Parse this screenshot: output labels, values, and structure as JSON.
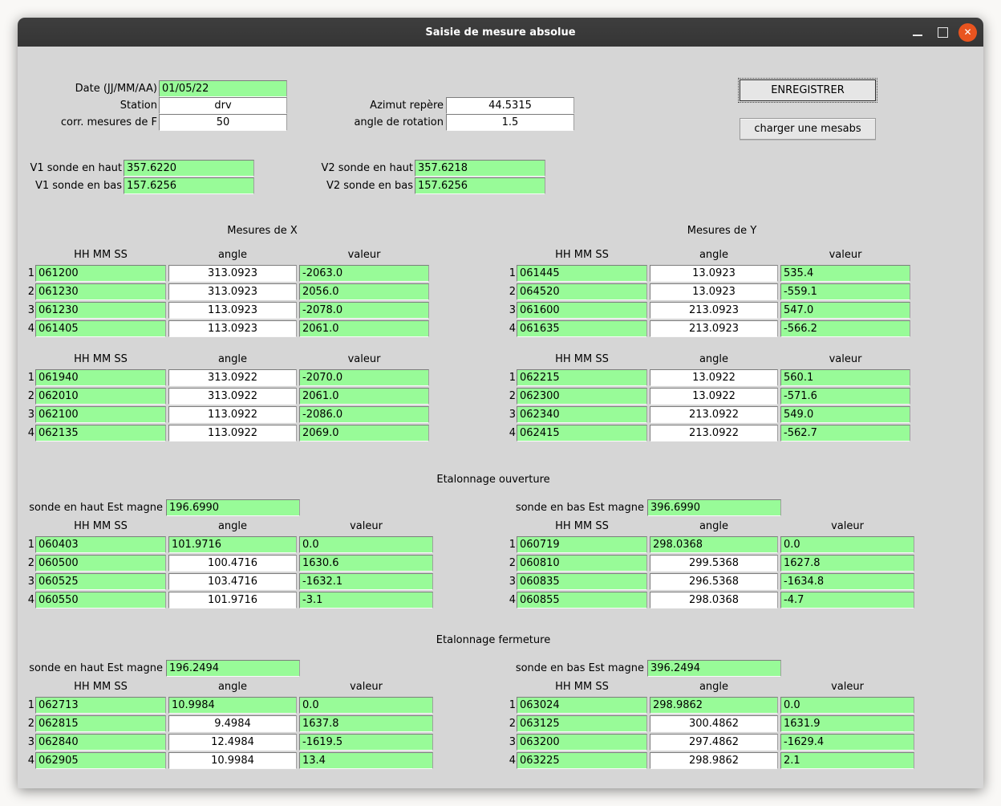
{
  "window": {
    "title": "Saisie de mesure absolue",
    "close_glyph": "✕"
  },
  "colors": {
    "field_green": "#98fb98",
    "field_white": "#ffffff",
    "window_bg": "#d6d6d6",
    "titlebar_bg": "#383838",
    "close_button": "#e9541f"
  },
  "header_form": {
    "date_label": "Date (JJ/MM/AA)",
    "date_value": "01/05/22",
    "station_label": "Station",
    "station_value": "drv",
    "corr_label": "corr. mesures de F",
    "corr_value": "50",
    "azimut_label": "Azimut repère",
    "azimut_value": "44.5315",
    "rotation_label": "angle de rotation",
    "rotation_value": "1.5",
    "save_button": "ENREGISTRER",
    "load_button": "charger une mesabs"
  },
  "sondes": {
    "v1_haut_label": "V1 sonde en haut",
    "v1_haut_value": "357.6220",
    "v1_bas_label": "V1 sonde en bas",
    "v1_bas_value": "157.6256",
    "v2_haut_label": "V2 sonde en haut",
    "v2_haut_value": "357.6218",
    "v2_bas_label": "V2 sonde en bas",
    "v2_bas_value": "157.6256"
  },
  "columns": {
    "time": "HH MM SS",
    "angle": "angle",
    "value": "valeur"
  },
  "mesures_x": {
    "title": "Mesures de X",
    "table1": [
      {
        "n": "1",
        "time": "061200",
        "angle": "313.0923",
        "angle_bg": "white",
        "value": "-2063.0"
      },
      {
        "n": "2",
        "time": "061230",
        "angle": "313.0923",
        "angle_bg": "white",
        "value": "2056.0"
      },
      {
        "n": "3",
        "time": "061230",
        "angle": "113.0923",
        "angle_bg": "white",
        "value": "-2078.0"
      },
      {
        "n": "4",
        "time": "061405",
        "angle": "113.0923",
        "angle_bg": "white",
        "value": "2061.0"
      }
    ],
    "table2": [
      {
        "n": "1",
        "time": "061940",
        "angle": "313.0922",
        "angle_bg": "white",
        "value": "-2070.0"
      },
      {
        "n": "2",
        "time": "062010",
        "angle": "313.0922",
        "angle_bg": "white",
        "value": "2061.0"
      },
      {
        "n": "3",
        "time": "062100",
        "angle": "113.0922",
        "angle_bg": "white",
        "value": "-2086.0"
      },
      {
        "n": "4",
        "time": "062135",
        "angle": "113.0922",
        "angle_bg": "white",
        "value": "2069.0"
      }
    ]
  },
  "mesures_y": {
    "title": "Mesures de Y",
    "table1": [
      {
        "n": "1",
        "time": "061445",
        "angle": "13.0923",
        "angle_bg": "white",
        "value": "535.4"
      },
      {
        "n": "2",
        "time": "064520",
        "angle": "13.0923",
        "angle_bg": "white",
        "value": "-559.1"
      },
      {
        "n": "3",
        "time": "061600",
        "angle": "213.0923",
        "angle_bg": "white",
        "value": "547.0"
      },
      {
        "n": "4",
        "time": "061635",
        "angle": "213.0923",
        "angle_bg": "white",
        "value": "-566.2"
      }
    ],
    "table2": [
      {
        "n": "1",
        "time": "062215",
        "angle": "13.0922",
        "angle_bg": "white",
        "value": "560.1"
      },
      {
        "n": "2",
        "time": "062300",
        "angle": "13.0922",
        "angle_bg": "white",
        "value": "-571.6"
      },
      {
        "n": "3",
        "time": "062340",
        "angle": "213.0922",
        "angle_bg": "white",
        "value": "549.0"
      },
      {
        "n": "4",
        "time": "062415",
        "angle": "213.0922",
        "angle_bg": "white",
        "value": "-562.7"
      }
    ]
  },
  "etalonnage_ouverture": {
    "title": "Etalonnage ouverture",
    "left": {
      "label": "sonde en haut Est magne",
      "value": "196.6990",
      "rows": [
        {
          "n": "1",
          "time": "060403",
          "angle": "101.9716",
          "angle_bg": "green",
          "value": "0.0"
        },
        {
          "n": "2",
          "time": "060500",
          "angle": "100.4716",
          "angle_bg": "white",
          "value": "1630.6"
        },
        {
          "n": "3",
          "time": "060525",
          "angle": "103.4716",
          "angle_bg": "white",
          "value": "-1632.1"
        },
        {
          "n": "4",
          "time": "060550",
          "angle": "101.9716",
          "angle_bg": "white",
          "value": "-3.1"
        }
      ]
    },
    "right": {
      "label": "sonde en bas Est magne",
      "value": "396.6990",
      "rows": [
        {
          "n": "1",
          "time": "060719",
          "angle": "298.0368",
          "angle_bg": "green",
          "value": "0.0"
        },
        {
          "n": "2",
          "time": "060810",
          "angle": "299.5368",
          "angle_bg": "white",
          "value": "1627.8"
        },
        {
          "n": "3",
          "time": "060835",
          "angle": "296.5368",
          "angle_bg": "white",
          "value": "-1634.8"
        },
        {
          "n": "4",
          "time": "060855",
          "angle": "298.0368",
          "angle_bg": "white",
          "value": "-4.7"
        }
      ]
    }
  },
  "etalonnage_fermeture": {
    "title": "Etalonnage fermeture",
    "left": {
      "label": "sonde en haut Est magne",
      "value": "196.2494",
      "rows": [
        {
          "n": "1",
          "time": "062713",
          "angle": "10.9984",
          "angle_bg": "green",
          "value": "0.0"
        },
        {
          "n": "2",
          "time": "062815",
          "angle": "9.4984",
          "angle_bg": "white",
          "value": "1637.8"
        },
        {
          "n": "3",
          "time": "062840",
          "angle": "12.4984",
          "angle_bg": "white",
          "value": "-1619.5"
        },
        {
          "n": "4",
          "time": "062905",
          "angle": "10.9984",
          "angle_bg": "white",
          "value": "13.4"
        }
      ]
    },
    "right": {
      "label": "sonde en bas Est magne",
      "value": "396.2494",
      "rows": [
        {
          "n": "1",
          "time": "063024",
          "angle": "298.9862",
          "angle_bg": "green",
          "value": "0.0"
        },
        {
          "n": "2",
          "time": "063125",
          "angle": "300.4862",
          "angle_bg": "white",
          "value": "1631.9"
        },
        {
          "n": "3",
          "time": "063200",
          "angle": "297.4862",
          "angle_bg": "white",
          "value": "-1629.4"
        },
        {
          "n": "4",
          "time": "063225",
          "angle": "298.9862",
          "angle_bg": "white",
          "value": "2.1"
        }
      ]
    }
  }
}
